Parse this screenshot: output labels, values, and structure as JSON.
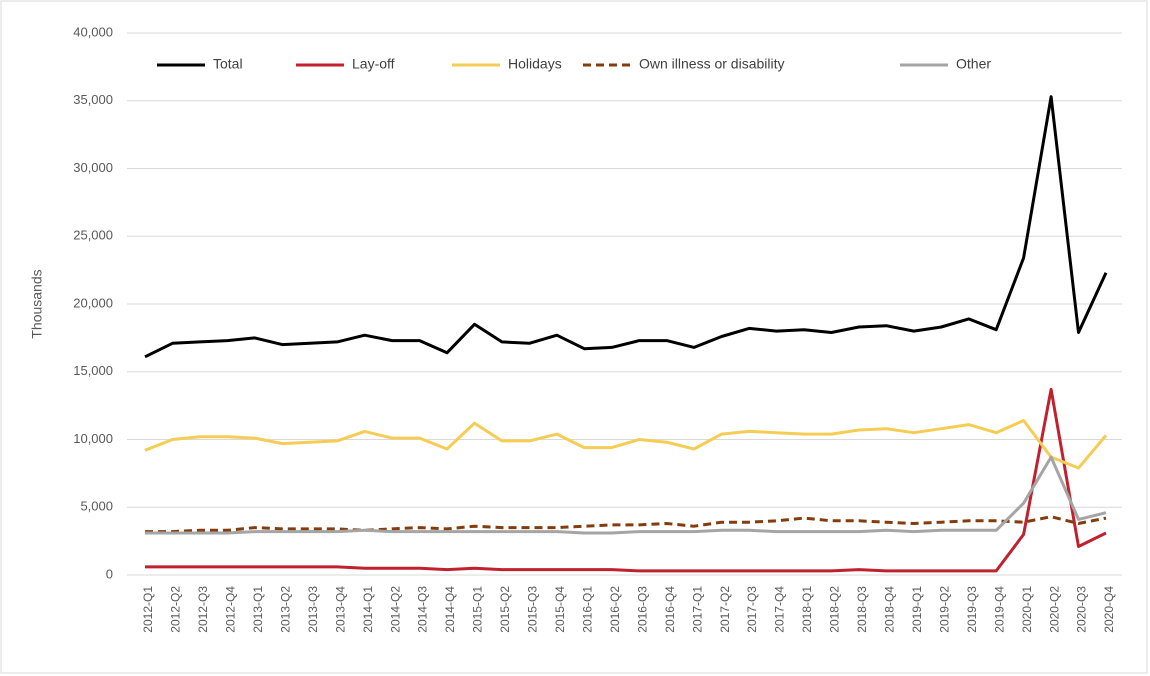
{
  "chart_data": {
    "type": "line",
    "y_label": "Thousands",
    "categories": [
      "2012-Q1",
      "2012-Q2",
      "2012-Q3",
      "2012-Q4",
      "2013-Q1",
      "2013-Q2",
      "2013-Q3",
      "2013-Q4",
      "2014-Q1",
      "2014-Q2",
      "2014-Q3",
      "2014-Q4",
      "2015-Q1",
      "2015-Q2",
      "2015-Q3",
      "2015-Q4",
      "2016-Q1",
      "2016-Q2",
      "2016-Q3",
      "2016-Q4",
      "2017-Q1",
      "2017-Q2",
      "2017-Q3",
      "2017-Q4",
      "2018-Q1",
      "2018-Q2",
      "2018-Q3",
      "2018-Q4",
      "2019-Q1",
      "2019-Q2",
      "2019-Q3",
      "2019-Q4",
      "2020-Q1",
      "2020-Q2",
      "2020-Q3",
      "2020-Q4"
    ],
    "series": [
      {
        "name": "Total",
        "color": "#000000",
        "values": [
          16100,
          17100,
          17200,
          17300,
          17500,
          17000,
          17100,
          17200,
          17700,
          17300,
          17300,
          16400,
          18500,
          17200,
          17100,
          17700,
          16700,
          16800,
          17300,
          17300,
          16800,
          17600,
          18200,
          18000,
          18100,
          17900,
          18300,
          18400,
          18000,
          18300,
          18900,
          18100,
          23400,
          35300,
          17900,
          22300
        ]
      },
      {
        "name": "Lay-off",
        "color": "#c0212f",
        "values": [
          600,
          600,
          600,
          600,
          600,
          600,
          600,
          600,
          500,
          500,
          500,
          400,
          500,
          400,
          400,
          400,
          400,
          400,
          300,
          300,
          300,
          300,
          300,
          300,
          300,
          300,
          400,
          300,
          300,
          300,
          300,
          300,
          3000,
          13700,
          2100,
          3100
        ]
      },
      {
        "name": "Holidays",
        "color": "#f5cd55",
        "values": [
          9200,
          10000,
          10200,
          10200,
          10100,
          9700,
          9800,
          9900,
          10600,
          10100,
          10100,
          9300,
          11200,
          9900,
          9900,
          10400,
          9400,
          9400,
          10000,
          9800,
          9300,
          10400,
          10600,
          10500,
          10400,
          10400,
          10700,
          10800,
          10500,
          10800,
          11100,
          10500,
          11400,
          8700,
          7900,
          10300
        ]
      },
      {
        "name": "Own illness or disability",
        "color": "#843c0c",
        "dashed": true,
        "values": [
          3200,
          3200,
          3300,
          3300,
          3500,
          3400,
          3400,
          3400,
          3300,
          3400,
          3500,
          3400,
          3600,
          3500,
          3500,
          3500,
          3600,
          3700,
          3700,
          3800,
          3600,
          3900,
          3900,
          4000,
          4200,
          4000,
          4000,
          3900,
          3800,
          3900,
          4000,
          4000,
          3900,
          4300,
          3800,
          4200
        ]
      },
      {
        "name": "Other",
        "color": "#a5a5a5",
        "values": [
          3100,
          3100,
          3100,
          3100,
          3200,
          3200,
          3200,
          3200,
          3300,
          3200,
          3200,
          3200,
          3200,
          3200,
          3200,
          3200,
          3100,
          3100,
          3200,
          3200,
          3200,
          3300,
          3300,
          3200,
          3200,
          3200,
          3200,
          3300,
          3200,
          3300,
          3300,
          3300,
          5300,
          8700,
          4100,
          4600
        ]
      }
    ],
    "ylim": [
      0,
      40000
    ],
    "yticks": [
      0,
      {
        "value": 5000,
        "label": "5,000"
      },
      {
        "value": 10000,
        "label": "10,000"
      },
      {
        "value": 15000,
        "label": "15,000"
      },
      {
        "value": 20000,
        "label": "20,000"
      },
      {
        "value": 25000,
        "label": "25,000"
      },
      {
        "value": 30000,
        "label": "30,000"
      },
      {
        "value": 35000,
        "label": "35,000"
      },
      {
        "value": 40000,
        "label": "40,000"
      }
    ],
    "grid": true,
    "legend": "top"
  }
}
